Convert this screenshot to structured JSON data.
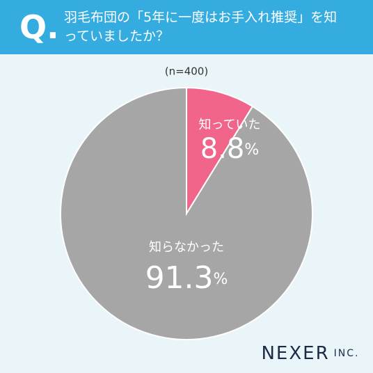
{
  "chart_data": {
    "type": "pie",
    "question_mark": "Q.",
    "title": "羽毛布団の「5年に一度はお手入れ推奨」を知っていましたか？",
    "sample": "(n=400)",
    "categories": [
      "知っていた",
      "知らなかった"
    ],
    "values": [
      8.8,
      91.3
    ],
    "unit": "%",
    "colors": [
      "#f2658a",
      "#a6a6a6"
    ],
    "brand": "NEXER",
    "brand_suffix": "INC."
  }
}
